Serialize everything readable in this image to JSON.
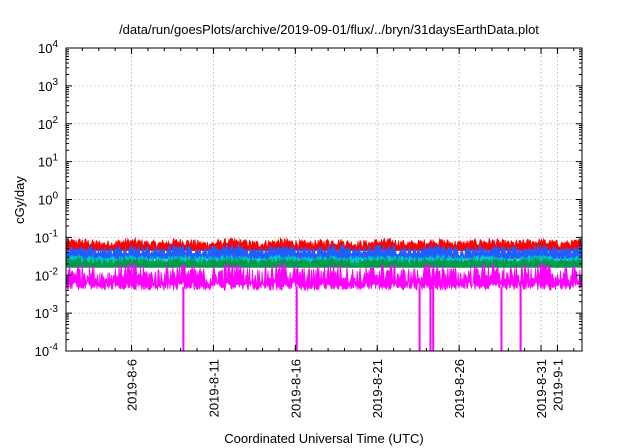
{
  "chart_data": {
    "type": "line",
    "title": "/data/run/goesPlots/archive/2019-09-01/flux/../bryn/31daysEarthData.plot",
    "xlabel": "Coordinated Universal Time (UTC)",
    "ylabel": "cGy/day",
    "y_scale": "log",
    "ylim": [
      0.0001,
      10000
    ],
    "xlim": [
      "2019-08-02",
      "2019-09-02T12:00"
    ],
    "y_ticks": [
      {
        "base": "10",
        "exp": "-4",
        "value": 0.0001
      },
      {
        "base": "10",
        "exp": "-3",
        "value": 0.001
      },
      {
        "base": "10",
        "exp": "-2",
        "value": 0.01
      },
      {
        "base": "10",
        "exp": "-1",
        "value": 0.1
      },
      {
        "base": "10",
        "exp": "0",
        "value": 1
      },
      {
        "base": "10",
        "exp": "1",
        "value": 10
      },
      {
        "base": "10",
        "exp": "2",
        "value": 100
      },
      {
        "base": "10",
        "exp": "3",
        "value": 1000
      },
      {
        "base": "10",
        "exp": "4",
        "value": 10000
      }
    ],
    "x_ticks": [
      {
        "label": "2019-8-6",
        "date": "2019-08-06"
      },
      {
        "label": "2019-8-11",
        "date": "2019-08-11"
      },
      {
        "label": "2019-8-16",
        "date": "2019-08-16"
      },
      {
        "label": "2019-8-21",
        "date": "2019-08-21"
      },
      {
        "label": "2019-8-26",
        "date": "2019-08-26"
      },
      {
        "label": "2019-8-31",
        "date": "2019-08-31"
      },
      {
        "label": "2019-9-1",
        "date": "2019-09-01"
      }
    ],
    "grid": true,
    "series": [
      {
        "color": "#ff0000",
        "typical": 0.065,
        "band": [
          0.05,
          0.1
        ]
      },
      {
        "color": "#1f5fff",
        "typical": 0.045,
        "band": [
          0.03,
          0.07
        ]
      },
      {
        "color": "#00c8c8",
        "typical": 0.028,
        "band": [
          0.022,
          0.035
        ]
      },
      {
        "color": "#009a4a",
        "typical": 0.022,
        "band": [
          0.018,
          0.03
        ]
      },
      {
        "color": "#ff00ff",
        "typical": 0.012,
        "band": [
          0.004,
          0.025
        ]
      }
    ],
    "dropouts": [
      {
        "date": "2019-08-09T04:00",
        "min": 0.0001
      },
      {
        "date": "2019-08-16T02:00",
        "min": 0.0001
      },
      {
        "date": "2019-08-23T14:00",
        "min": 0.0001
      },
      {
        "date": "2019-08-24T06:00",
        "min": 0.0001
      },
      {
        "date": "2019-08-24T10:00",
        "min": 0.0001
      },
      {
        "date": "2019-08-28T14:00",
        "min": 0.0001
      },
      {
        "date": "2019-08-29T18:00",
        "min": 0.0001
      }
    ]
  }
}
